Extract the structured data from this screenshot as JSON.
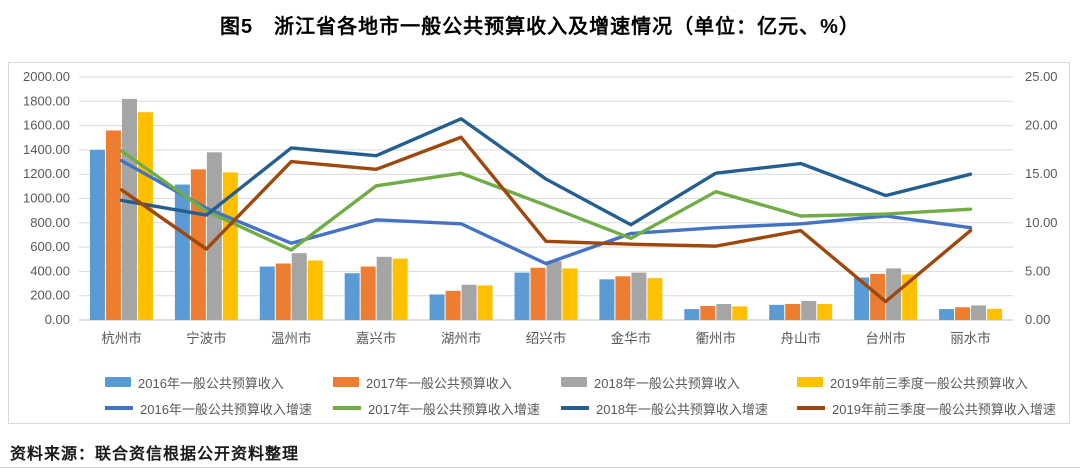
{
  "title": "图5　浙江省各地市一般公共预算收入及增速情况（单位：亿元、%）",
  "source": "资料来源：联合资信根据公开资料整理",
  "chart_data": {
    "type": "bar",
    "subtype": "clustered-bar-with-lines-combo",
    "categories": [
      "杭州市",
      "宁波市",
      "温州市",
      "嘉兴市",
      "湖州市",
      "绍兴市",
      "金华市",
      "衢州市",
      "舟山市",
      "台州市",
      "丽水市"
    ],
    "bar_series": [
      {
        "name": "2016年一般公共预算收入",
        "color": "#5B9BD5",
        "axis": "left",
        "values": [
          1400,
          1115,
          440,
          385,
          210,
          390,
          335,
          90,
          125,
          350,
          90
        ]
      },
      {
        "name": "2017年一般公共预算收入",
        "color": "#ED7D31",
        "axis": "left",
        "values": [
          1560,
          1240,
          465,
          440,
          240,
          430,
          360,
          115,
          132,
          380,
          105
        ]
      },
      {
        "name": "2018年一般公共预算收入",
        "color": "#A5A5A5",
        "axis": "left",
        "values": [
          1820,
          1380,
          550,
          520,
          290,
          485,
          390,
          132,
          157,
          425,
          120
        ]
      },
      {
        "name": "2019年前三季度一般公共预算收入",
        "color": "#FFC000",
        "axis": "left",
        "values": [
          1710,
          1215,
          490,
          505,
          285,
          425,
          345,
          112,
          132,
          375,
          92
        ]
      }
    ],
    "line_series": [
      {
        "name": "2016年一般公共预算收入增速",
        "color": "#4472C4",
        "axis": "right",
        "values": [
          16.4,
          11.5,
          7.9,
          10.3,
          9.9,
          5.8,
          8.9,
          9.5,
          9.9,
          10.7,
          9.5
        ]
      },
      {
        "name": "2017年一般公共预算收入增速",
        "color": "#70AD47",
        "axis": "right",
        "values": [
          17.4,
          11.2,
          7.2,
          13.8,
          15.1,
          11.8,
          8.4,
          13.2,
          10.7,
          10.9,
          11.4
        ]
      },
      {
        "name": "2018年一般公共预算收入增速",
        "color": "#255E91",
        "axis": "right",
        "values": [
          12.3,
          10.8,
          17.7,
          16.9,
          20.7,
          14.5,
          9.8,
          15.1,
          16.1,
          12.8,
          15.0
        ]
      },
      {
        "name": "2019年前三季度一般公共预算收入增速",
        "color": "#9E480E",
        "axis": "right",
        "values": [
          13.4,
          7.3,
          16.3,
          15.5,
          18.8,
          8.1,
          7.8,
          7.6,
          9.2,
          1.9,
          9.2
        ]
      }
    ],
    "left_axis": {
      "min": 0,
      "max": 2000,
      "step": 200,
      "tick_format": "0.00",
      "unit": "亿元"
    },
    "right_axis": {
      "min": 0,
      "max": 25,
      "step": 5,
      "tick_format": "0.00",
      "unit": "%"
    },
    "grid": true,
    "gridline_color": "#D9D9D9",
    "axis_text_color": "#595959",
    "legend_position": "bottom"
  }
}
